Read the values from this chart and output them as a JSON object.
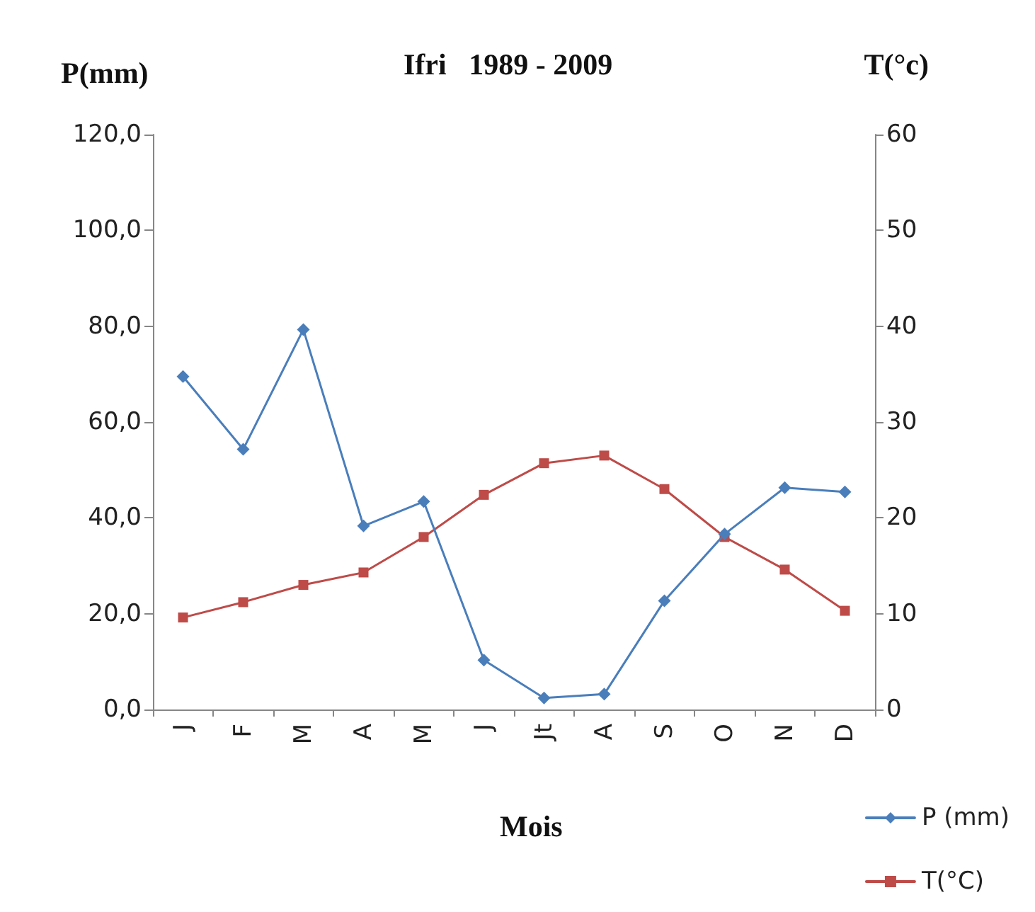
{
  "chart_data": {
    "type": "line",
    "title": "Ifri   1989 - 2009",
    "xlabel": "Mois",
    "ylabel": "P(mm)",
    "y2label": "T(°c)",
    "categories": [
      "J",
      "F",
      "M",
      "A",
      "M",
      "J",
      "Jt",
      "A",
      "S",
      "O",
      "N",
      "D"
    ],
    "series": [
      {
        "name": "P (mm)",
        "color": "#4a7ebb",
        "marker": "diamond",
        "values": [
          69.5,
          54.3,
          79.3,
          38.3,
          43.4,
          10.3,
          2.4,
          3.2,
          22.7,
          36.6,
          46.3,
          45.4
        ]
      },
      {
        "name": "T(°C)",
        "color": "#be4b48",
        "marker": "square",
        "axis": "y2",
        "values": [
          9.6,
          11.2,
          13.0,
          14.3,
          18.0,
          22.4,
          25.7,
          26.5,
          23.0,
          18.0,
          14.6,
          10.3
        ]
      }
    ],
    "ylim": [
      0,
      120
    ],
    "yticks": [
      {
        "value": 0,
        "label": "0,0"
      },
      {
        "value": 20,
        "label": "20,0"
      },
      {
        "value": 40,
        "label": "40,0"
      },
      {
        "value": 60,
        "label": "60,0"
      },
      {
        "value": 80,
        "label": "80,0"
      },
      {
        "value": 100,
        "label": "100,0"
      },
      {
        "value": 120,
        "label": "120,0"
      }
    ],
    "y2lim": [
      0,
      60
    ],
    "y2ticks": [
      0,
      10,
      20,
      30,
      40,
      50,
      60
    ],
    "grid": false,
    "legend": "bottom right"
  }
}
